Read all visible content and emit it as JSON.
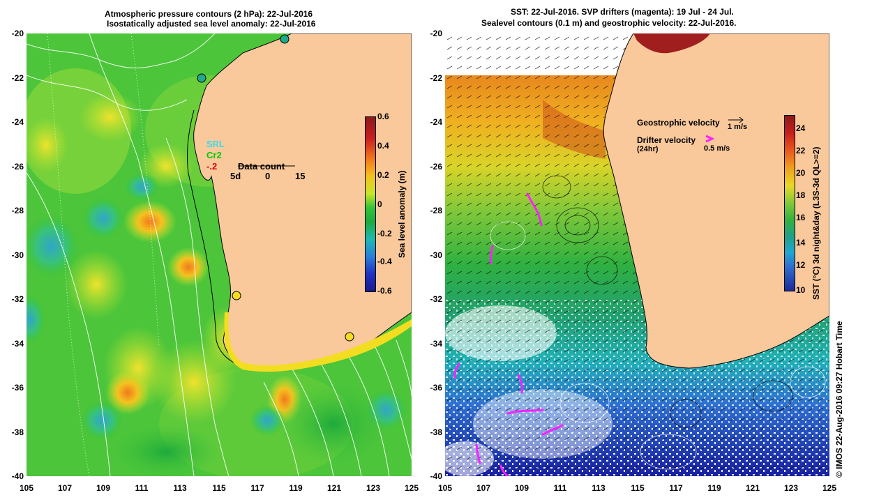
{
  "left_title": {
    "line1": "Atmospheric pressure contours (2 hPa): 22-Jul-2016",
    "line2": "Isostatically adjusted sea level anomaly: 22-Jul-2016"
  },
  "right_title": {
    "line1": "SST: 22-Jul-2016. SVP drifters (magenta): 19 Jul - 24 Jul.",
    "line2": "Sealevel contours (0.1 m) and geostrophic velocity: 22-Jul-2016."
  },
  "lat_ticks": [
    "-20",
    "-22",
    "-24",
    "-26",
    "-28",
    "-30",
    "-32",
    "-34",
    "-36",
    "-38",
    "-40"
  ],
  "lon_ticks": [
    "105",
    "107",
    "109",
    "111",
    "113",
    "115",
    "117",
    "119",
    "121",
    "123",
    "125"
  ],
  "left_colorbar": {
    "label": "Sea level anomaly (m)",
    "ticks": [
      "0.6",
      "0.4",
      "0.2",
      "0",
      "-0.2",
      "-0.4",
      "-0.6"
    ]
  },
  "right_colorbar": {
    "label": "SST (°C) 3d night&day (L3S-3d QL>=2)",
    "ticks": [
      "24",
      "22",
      "20",
      "18",
      "16",
      "14",
      "12",
      "10"
    ]
  },
  "left_legend": {
    "srl": "SRL",
    "cr2": "Cr2",
    "val": "-.2",
    "data_count": "Data count",
    "dc_ticks": [
      "5d",
      "0",
      "15"
    ]
  },
  "right_legend": {
    "geo": "Geostrophic velocity",
    "geo_scale": "1 m/s",
    "drifter": "Drifter velocity",
    "drifter_sub": "(24hr)",
    "drifter_scale": "0.5 m/s"
  },
  "credit": "© IMOS 22-Aug-2016 09:27 Hobart Time",
  "colors": {
    "land": "#f9c89b",
    "drifter": "#ff20ff",
    "srl": "#33ddee",
    "cr2": "#00cc00",
    "val": "#dd0000"
  }
}
